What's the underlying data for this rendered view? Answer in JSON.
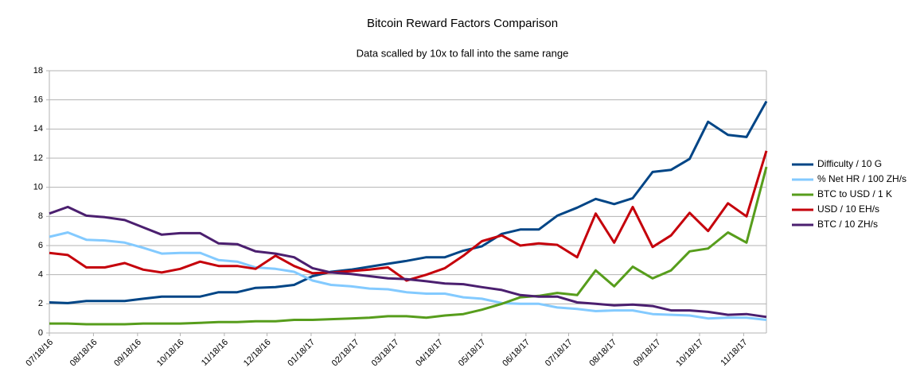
{
  "chart_data": {
    "type": "line",
    "title": "Bitcoin Reward Factors Comparison",
    "subtitle": "Data scalled by 10x to fall into the same range",
    "x": [
      "07/18/16",
      "07/31/16",
      "08/13/16",
      "08/26/16",
      "09/09/16",
      "09/22/16",
      "10/05/16",
      "10/18/16",
      "11/01/16",
      "11/14/16",
      "11/27/16",
      "12/10/16",
      "12/24/16",
      "01/06/17",
      "01/19/17",
      "02/01/17",
      "02/15/17",
      "02/28/17",
      "03/13/17",
      "03/26/17",
      "04/09/17",
      "04/22/17",
      "05/05/17",
      "05/18/17",
      "06/01/17",
      "06/14/17",
      "06/27/17",
      "07/10/17",
      "07/24/17",
      "08/06/17",
      "08/19/17",
      "09/01/17",
      "09/15/17",
      "09/28/17",
      "10/11/17",
      "10/24/17",
      "11/07/17",
      "11/20/17",
      "12/04/17"
    ],
    "xlim": [
      "07/18/16",
      "12/04/17"
    ],
    "xticks": [
      "07/18/16",
      "08/18/16",
      "09/18/16",
      "10/18/16",
      "11/18/16",
      "12/18/16",
      "01/18/17",
      "02/18/17",
      "03/18/17",
      "04/18/17",
      "05/18/17",
      "06/18/17",
      "07/18/17",
      "08/18/17",
      "09/18/17",
      "10/18/17",
      "11/18/17"
    ],
    "ylim": [
      0,
      18
    ],
    "yticks": [
      0,
      2,
      4,
      6,
      8,
      10,
      12,
      14,
      16,
      18
    ],
    "grid": true,
    "legend": "right",
    "series": [
      {
        "name": "Difficulty / 10 G",
        "color": "#004586",
        "values": [
          2.1,
          2.05,
          2.2,
          2.2,
          2.2,
          2.35,
          2.5,
          2.5,
          2.5,
          2.8,
          2.8,
          3.1,
          3.15,
          3.3,
          3.9,
          4.2,
          4.35,
          4.55,
          4.75,
          4.95,
          5.2,
          5.2,
          5.65,
          5.95,
          6.8,
          7.1,
          7.1,
          8.05,
          8.6,
          9.2,
          8.85,
          9.25,
          11.05,
          11.2,
          11.95,
          14.5,
          13.6,
          13.45,
          15.9
        ]
      },
      {
        "name": "% Net HR / 100 ZH/s",
        "color": "#83caff",
        "values": [
          6.6,
          6.9,
          6.4,
          6.35,
          6.2,
          5.85,
          5.45,
          5.5,
          5.5,
          5.0,
          4.9,
          4.5,
          4.4,
          4.2,
          3.6,
          3.3,
          3.2,
          3.05,
          3.0,
          2.8,
          2.7,
          2.7,
          2.45,
          2.35,
          2.05,
          2.0,
          2.0,
          1.75,
          1.65,
          1.5,
          1.55,
          1.55,
          1.3,
          1.25,
          1.2,
          1.0,
          1.05,
          1.05,
          0.9
        ]
      },
      {
        "name": "BTC to USD  / 1 K",
        "color": "#579d1c",
        "values": [
          0.65,
          0.65,
          0.6,
          0.6,
          0.6,
          0.65,
          0.65,
          0.65,
          0.7,
          0.75,
          0.75,
          0.8,
          0.8,
          0.9,
          0.9,
          0.95,
          1.0,
          1.05,
          1.15,
          1.15,
          1.05,
          1.2,
          1.3,
          1.6,
          2.0,
          2.45,
          2.55,
          2.75,
          2.6,
          4.3,
          3.2,
          4.55,
          3.75,
          4.3,
          5.6,
          5.8,
          6.9,
          6.2,
          11.4
        ]
      },
      {
        "name": "USD /  10 EH/s",
        "color": "#c5000b",
        "values": [
          5.5,
          5.35,
          4.5,
          4.5,
          4.8,
          4.35,
          4.15,
          4.4,
          4.9,
          4.6,
          4.6,
          4.4,
          5.3,
          4.6,
          4.1,
          4.15,
          4.25,
          4.35,
          4.5,
          3.6,
          4.0,
          4.45,
          5.3,
          6.3,
          6.7,
          6.0,
          6.15,
          6.05,
          5.2,
          8.2,
          6.2,
          8.65,
          5.9,
          6.7,
          8.25,
          7.0,
          8.9,
          8.0,
          12.5
        ]
      },
      {
        "name": "BTC  / 10 ZH/s",
        "color": "#4b1f6f",
        "values": [
          8.2,
          8.65,
          8.05,
          7.95,
          7.75,
          7.25,
          6.75,
          6.85,
          6.85,
          6.15,
          6.1,
          5.6,
          5.45,
          5.2,
          4.45,
          4.15,
          4.05,
          3.9,
          3.75,
          3.7,
          3.55,
          3.4,
          3.35,
          3.15,
          2.95,
          2.6,
          2.5,
          2.5,
          2.1,
          2.0,
          1.9,
          1.95,
          1.85,
          1.55,
          1.55,
          1.45,
          1.25,
          1.3,
          1.1
        ]
      }
    ]
  }
}
